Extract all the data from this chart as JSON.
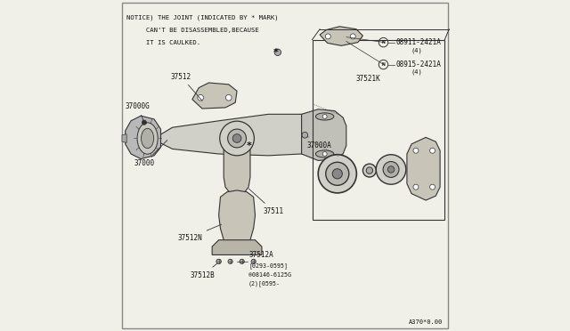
{
  "bg_color": "#f0f0e8",
  "border_color": "#888888",
  "line_color": "#333333",
  "text_color": "#111111",
  "notice_lines": [
    "NOTICE) THE JOINT (INDICATED BY * MARK)",
    "     CAN'T BE DISASSEMBLED,BECAUSE",
    "     IT IS CAULKED."
  ],
  "footer_text": "A370*0.00",
  "shaft_fill": "#d0cfc8",
  "part_fill": "#c8c4b8",
  "bearing_fill": "#d0d0c8",
  "dark_fill": "#aaaaaa"
}
